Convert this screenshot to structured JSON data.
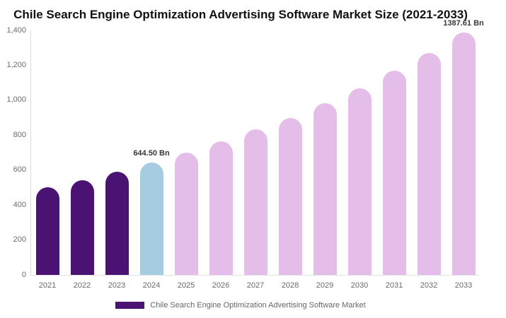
{
  "chart_data": {
    "type": "bar",
    "title": "Chile Search Engine Optimization Advertising Software Market Size (2021-2033)",
    "unit": "Bn",
    "categories": [
      "2021",
      "2022",
      "2023",
      "2024",
      "2025",
      "2026",
      "2027",
      "2028",
      "2029",
      "2030",
      "2031",
      "2032",
      "2033"
    ],
    "values": [
      500,
      544,
      592,
      644.5,
      702,
      765,
      833,
      900,
      985,
      1070,
      1168,
      1272,
      1387.61
    ],
    "bar_colors": [
      "#4A1272",
      "#4A1272",
      "#4A1272",
      "#A5CCE1",
      "#E4BDE8",
      "#E4BDE8",
      "#E4BDE8",
      "#E4BDE8",
      "#E4BDE8",
      "#E4BDE8",
      "#E4BDE8",
      "#E4BDE8",
      "#E4BDE8"
    ],
    "ylim": [
      0,
      1400
    ],
    "yticks": [
      0,
      200,
      400,
      600,
      800,
      1000,
      1200,
      1400
    ],
    "ytick_labels": [
      "0",
      "200",
      "400",
      "600",
      "800",
      "1,000",
      "1,200",
      "1,400"
    ],
    "grid": false,
    "legend_position": "bottom",
    "annotations": [
      {
        "category": "2024",
        "value": 644.5,
        "text": "644.50 Bn"
      },
      {
        "category": "2033",
        "value": 1387.61,
        "text": "1387.61 Bn"
      }
    ],
    "legend": {
      "items": [
        {
          "label": "Chile Search Engine Optimization Advertising Software Market",
          "color": "#4A1272"
        }
      ]
    },
    "colors": {
      "historical": "#4A1272",
      "highlight": "#A5CCE1",
      "forecast": "#E4BDE8",
      "axis_line": "#d9d9d9",
      "tick_text": "#6b6b6b",
      "title_text": "#111111",
      "annotation_text": "#383838"
    }
  }
}
